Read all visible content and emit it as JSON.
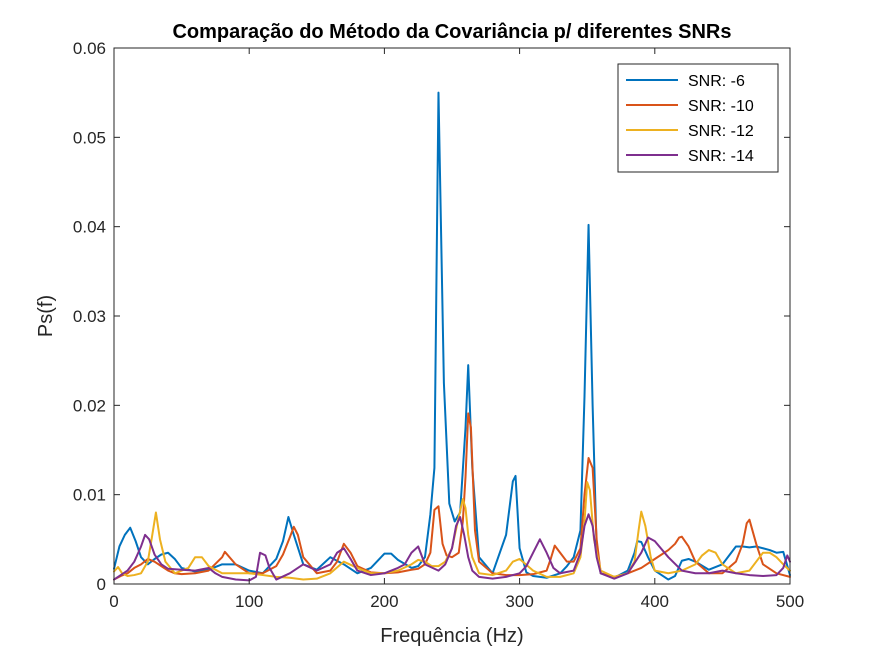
{
  "chart_data": {
    "type": "line",
    "title": "Comparação do Método da Covariância p/ diferentes SNRs",
    "xlabel": "Frequência (Hz)",
    "ylabel": "Ps(f)",
    "xlim": [
      0,
      500
    ],
    "ylim": [
      0,
      0.06
    ],
    "xticks": [
      0,
      100,
      200,
      300,
      400,
      500
    ],
    "xtick_labels": [
      "0",
      "100",
      "200",
      "300",
      "400",
      "500"
    ],
    "yticks": [
      0,
      0.01,
      0.02,
      0.03,
      0.04,
      0.05,
      0.06
    ],
    "ytick_labels": [
      "0",
      "0.01",
      "0.02",
      "0.03",
      "0.04",
      "0.05",
      "0.06"
    ],
    "grid": false,
    "legend_position": "top-right",
    "series": [
      {
        "name": "SNR: -6",
        "color": "#0072BD",
        "x": [
          0,
          4,
          8,
          12,
          16,
          20,
          25,
          30,
          35,
          40,
          45,
          50,
          60,
          70,
          80,
          90,
          100,
          110,
          120,
          125,
          129,
          133,
          140,
          150,
          160,
          170,
          180,
          190,
          195,
          200,
          205,
          210,
          220,
          225,
          230,
          234,
          237,
          240,
          244,
          248,
          252,
          256,
          260,
          262,
          265,
          270,
          280,
          290,
          295,
          297,
          300,
          305,
          310,
          320,
          330,
          335,
          340,
          345,
          348,
          351,
          354,
          357,
          360,
          370,
          380,
          385,
          387,
          390,
          395,
          400,
          410,
          415,
          420,
          425,
          430,
          440,
          450,
          460,
          465,
          470,
          475,
          480,
          485,
          490,
          495,
          500
        ],
        "values": [
          0.0017,
          0.0042,
          0.0055,
          0.0063,
          0.0048,
          0.003,
          0.0022,
          0.0028,
          0.0033,
          0.0035,
          0.0028,
          0.0018,
          0.0014,
          0.0016,
          0.0022,
          0.0022,
          0.0015,
          0.0012,
          0.0028,
          0.0048,
          0.0075,
          0.0055,
          0.0022,
          0.0016,
          0.003,
          0.0022,
          0.0012,
          0.0018,
          0.0026,
          0.0034,
          0.0034,
          0.0027,
          0.0018,
          0.002,
          0.003,
          0.0078,
          0.013,
          0.055,
          0.0225,
          0.009,
          0.007,
          0.008,
          0.0175,
          0.0245,
          0.013,
          0.003,
          0.0012,
          0.0055,
          0.0115,
          0.0121,
          0.004,
          0.0013,
          0.0009,
          0.0007,
          0.0012,
          0.002,
          0.003,
          0.006,
          0.021,
          0.0402,
          0.02,
          0.004,
          0.0012,
          0.0007,
          0.0015,
          0.0035,
          0.0048,
          0.0047,
          0.003,
          0.0015,
          0.0005,
          0.0009,
          0.0026,
          0.0028,
          0.0025,
          0.0016,
          0.0022,
          0.0042,
          0.0042,
          0.0041,
          0.0042,
          0.004,
          0.0038,
          0.0035,
          0.0036,
          0.001
        ]
      },
      {
        "name": "SNR: -10",
        "color": "#D95319",
        "x": [
          0,
          5,
          10,
          15,
          20,
          25,
          30,
          35,
          40,
          45,
          50,
          60,
          70,
          80,
          82,
          90,
          100,
          110,
          120,
          125,
          130,
          133,
          136,
          140,
          150,
          160,
          165,
          170,
          175,
          180,
          190,
          200,
          210,
          220,
          225,
          230,
          234,
          237,
          240,
          243,
          246,
          250,
          255,
          258,
          260,
          262,
          264,
          267,
          270,
          280,
          290,
          300,
          310,
          320,
          323,
          326,
          330,
          335,
          340,
          345,
          348,
          351,
          354,
          357,
          360,
          370,
          380,
          390,
          400,
          410,
          415,
          418,
          420,
          425,
          430,
          440,
          450,
          460,
          465,
          468,
          470,
          475,
          480,
          490,
          500
        ],
        "values": [
          0.0005,
          0.0009,
          0.0012,
          0.0018,
          0.0022,
          0.0028,
          0.0025,
          0.002,
          0.0015,
          0.0012,
          0.0011,
          0.0012,
          0.0015,
          0.003,
          0.0036,
          0.0022,
          0.0012,
          0.0012,
          0.002,
          0.0033,
          0.0052,
          0.0064,
          0.0055,
          0.003,
          0.0012,
          0.0015,
          0.0025,
          0.0045,
          0.0035,
          0.002,
          0.0013,
          0.0012,
          0.0013,
          0.0016,
          0.0017,
          0.0022,
          0.0035,
          0.0083,
          0.0087,
          0.0045,
          0.0032,
          0.003,
          0.0035,
          0.007,
          0.012,
          0.0191,
          0.0175,
          0.006,
          0.0025,
          0.0012,
          0.001,
          0.001,
          0.0011,
          0.0015,
          0.0028,
          0.0043,
          0.0035,
          0.0025,
          0.0025,
          0.004,
          0.01,
          0.0141,
          0.013,
          0.005,
          0.0012,
          0.0008,
          0.0012,
          0.0018,
          0.0028,
          0.0038,
          0.0045,
          0.0052,
          0.0053,
          0.0042,
          0.0025,
          0.0012,
          0.0012,
          0.0025,
          0.0045,
          0.0068,
          0.0072,
          0.0045,
          0.0022,
          0.0012,
          0.0008
        ]
      },
      {
        "name": "SNR: -12",
        "color": "#EDB120",
        "x": [
          0,
          3,
          6,
          10,
          15,
          20,
          25,
          28,
          31,
          34,
          38,
          45,
          55,
          60,
          65,
          70,
          80,
          90,
          100,
          110,
          120,
          130,
          140,
          150,
          160,
          170,
          180,
          190,
          200,
          210,
          220,
          225,
          230,
          235,
          240,
          245,
          250,
          255,
          258,
          260,
          262,
          265,
          270,
          280,
          290,
          295,
          300,
          310,
          320,
          330,
          340,
          345,
          348,
          350,
          352,
          355,
          360,
          370,
          380,
          385,
          388,
          390,
          393,
          397,
          400,
          410,
          420,
          430,
          435,
          440,
          445,
          450,
          460,
          470,
          475,
          480,
          485,
          490,
          495,
          500
        ],
        "values": [
          0.0014,
          0.0019,
          0.0012,
          0.0009,
          0.001,
          0.0012,
          0.0025,
          0.0052,
          0.008,
          0.005,
          0.0025,
          0.0012,
          0.0018,
          0.003,
          0.003,
          0.002,
          0.0012,
          0.0012,
          0.0012,
          0.001,
          0.0008,
          0.0007,
          0.0005,
          0.0006,
          0.0012,
          0.0025,
          0.0018,
          0.0012,
          0.0012,
          0.0015,
          0.0022,
          0.0027,
          0.0025,
          0.002,
          0.002,
          0.0025,
          0.004,
          0.0075,
          0.0095,
          0.0085,
          0.0055,
          0.003,
          0.0012,
          0.001,
          0.0015,
          0.0025,
          0.0028,
          0.0015,
          0.0008,
          0.0008,
          0.0012,
          0.003,
          0.007,
          0.0114,
          0.0105,
          0.005,
          0.0015,
          0.0008,
          0.0012,
          0.0025,
          0.006,
          0.0081,
          0.0065,
          0.003,
          0.0015,
          0.0012,
          0.0015,
          0.0022,
          0.0032,
          0.0038,
          0.0035,
          0.0022,
          0.0012,
          0.0015,
          0.0025,
          0.0035,
          0.0035,
          0.003,
          0.0022,
          0.0015
        ]
      },
      {
        "name": "SNR: -14",
        "color": "#7E2F8E",
        "x": [
          0,
          5,
          10,
          15,
          20,
          23,
          26,
          30,
          35,
          40,
          50,
          60,
          70,
          75,
          80,
          90,
          100,
          105,
          108,
          112,
          115,
          120,
          130,
          140,
          150,
          160,
          165,
          170,
          175,
          180,
          190,
          200,
          210,
          215,
          220,
          225,
          230,
          240,
          245,
          250,
          253,
          256,
          259,
          262,
          265,
          270,
          280,
          290,
          300,
          305,
          310,
          315,
          320,
          325,
          330,
          340,
          345,
          348,
          351,
          354,
          357,
          360,
          370,
          380,
          390,
          395,
          400,
          410,
          420,
          430,
          440,
          450,
          460,
          470,
          480,
          490,
          495,
          498,
          500
        ],
        "values": [
          0.0005,
          0.001,
          0.0015,
          0.0025,
          0.0042,
          0.0055,
          0.005,
          0.0033,
          0.0022,
          0.0017,
          0.0016,
          0.0015,
          0.0018,
          0.0012,
          0.0008,
          0.0005,
          0.0004,
          0.0008,
          0.0035,
          0.0032,
          0.0018,
          0.0005,
          0.0012,
          0.0022,
          0.0015,
          0.0022,
          0.0035,
          0.004,
          0.0028,
          0.0015,
          0.001,
          0.0012,
          0.0018,
          0.0022,
          0.0035,
          0.0042,
          0.0022,
          0.0015,
          0.0022,
          0.004,
          0.0065,
          0.0075,
          0.0055,
          0.003,
          0.0015,
          0.0008,
          0.0006,
          0.0008,
          0.0012,
          0.002,
          0.0035,
          0.005,
          0.0035,
          0.0018,
          0.0012,
          0.0015,
          0.0035,
          0.0065,
          0.0078,
          0.0065,
          0.003,
          0.0012,
          0.0006,
          0.0012,
          0.0035,
          0.0052,
          0.0048,
          0.003,
          0.0015,
          0.0012,
          0.0012,
          0.0015,
          0.0012,
          0.001,
          0.0009,
          0.001,
          0.0018,
          0.0032,
          0.0025
        ]
      }
    ]
  }
}
